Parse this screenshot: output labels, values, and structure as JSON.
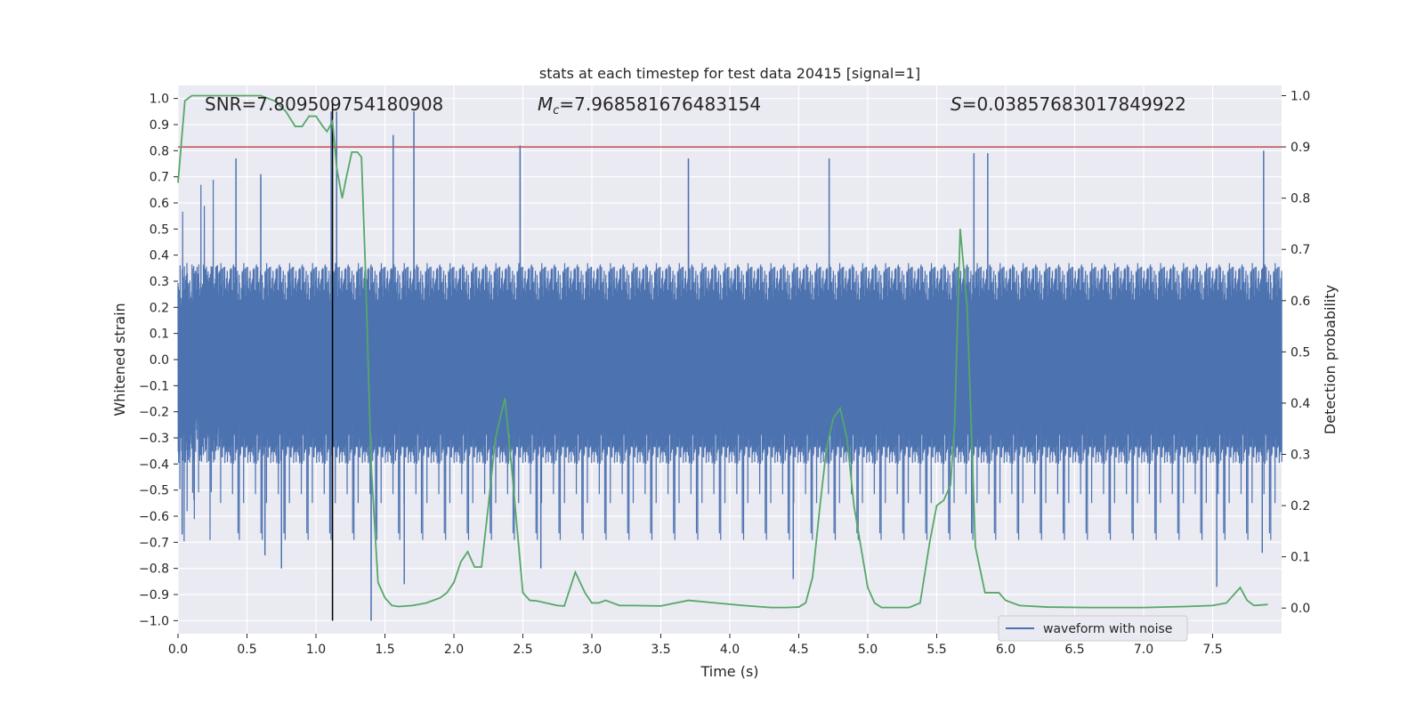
{
  "chart_data": {
    "type": "line",
    "title": "stats at each timestep for test data 20415 [signal=1]",
    "xlabel": "Time (s)",
    "ylabel_left": "Whitened strain",
    "ylabel_right": "Detection probability",
    "xlim": [
      0.0,
      8.0
    ],
    "ylim_left": [
      -1.05,
      1.05
    ],
    "ylim_right": [
      -0.05,
      1.02
    ],
    "x_ticks": [
      0.0,
      0.5,
      1.0,
      1.5,
      2.0,
      2.5,
      3.0,
      3.5,
      4.0,
      4.5,
      5.0,
      5.5,
      6.0,
      6.5,
      7.0,
      7.5
    ],
    "x_tick_labels": [
      "0.0",
      "0.5",
      "1.0",
      "1.5",
      "2.0",
      "2.5",
      "3.0",
      "3.5",
      "4.0",
      "4.5",
      "5.0",
      "5.5",
      "6.0",
      "6.5",
      "7.0",
      "7.5"
    ],
    "y_left_ticks": [
      1.0,
      0.9,
      0.8,
      0.7,
      0.6,
      0.5,
      0.4,
      0.3,
      0.2,
      0.1,
      0.0,
      -0.1,
      -0.2,
      -0.3,
      -0.4,
      -0.5,
      -0.6,
      -0.7,
      -0.8,
      -0.9,
      -1.0
    ],
    "y_left_tick_labels": [
      "1.0",
      "0.9",
      "0.8",
      "0.7",
      "0.6",
      "0.5",
      "0.4",
      "0.3",
      "0.2",
      "0.1",
      "0.0",
      "−0.1",
      "−0.2",
      "−0.3",
      "−0.4",
      "−0.5",
      "−0.6",
      "−0.7",
      "−0.8",
      "−0.9",
      "−1.0"
    ],
    "y_right_ticks": [
      1.0,
      0.9,
      0.8,
      0.7,
      0.6,
      0.5,
      0.4,
      0.3,
      0.2,
      0.1,
      0.0
    ],
    "y_right_tick_labels": [
      "1.0",
      "0.9",
      "0.8",
      "0.7",
      "0.6",
      "0.5",
      "0.4",
      "0.3",
      "0.2",
      "0.1",
      "0.0"
    ],
    "annotations": {
      "snr": "SNR=7.809509754180908",
      "mc_symbol": "M",
      "mc_sub": "c",
      "mc_value": "=7.968581676483154",
      "s_symbol": "S",
      "s_value": "=0.03857683017849922"
    },
    "legend": {
      "label": "waveform with noise",
      "placement": "lower-right"
    },
    "threshold_line": {
      "y_right": 0.9,
      "color": "#c44e52"
    },
    "event_line": {
      "x": 1.12,
      "color": "#000000"
    },
    "waveform": {
      "name": "waveform with noise",
      "color": "#4c72b0",
      "band_upper": 0.37,
      "band_lower": -0.4,
      "spike_peaks": [
        {
          "x": 0.03,
          "y": -0.67
        },
        {
          "x": 0.42,
          "y": 0.77
        },
        {
          "x": 0.6,
          "y": 0.71
        },
        {
          "x": 0.63,
          "y": -0.75
        },
        {
          "x": 0.75,
          "y": -0.8
        },
        {
          "x": 1.11,
          "y": 0.95
        },
        {
          "x": 1.15,
          "y": 0.95
        },
        {
          "x": 1.4,
          "y": -1.0
        },
        {
          "x": 1.56,
          "y": 0.86
        },
        {
          "x": 1.64,
          "y": -0.86
        },
        {
          "x": 1.71,
          "y": 0.95
        },
        {
          "x": 2.48,
          "y": 0.82
        },
        {
          "x": 2.63,
          "y": -0.8
        },
        {
          "x": 3.7,
          "y": 0.77
        },
        {
          "x": 4.46,
          "y": -0.84
        },
        {
          "x": 4.72,
          "y": 0.77
        },
        {
          "x": 5.77,
          "y": 0.79
        },
        {
          "x": 5.87,
          "y": 0.79
        },
        {
          "x": 7.53,
          "y": -0.87
        },
        {
          "x": 7.87,
          "y": 0.8
        },
        {
          "x": 7.86,
          "y": -0.74
        }
      ]
    },
    "detection_probability": {
      "name": "detection probability",
      "color": "#55a868",
      "x": [
        0.0,
        0.05,
        0.1,
        0.2,
        0.3,
        0.4,
        0.5,
        0.6,
        0.7,
        0.78,
        0.85,
        0.9,
        0.95,
        1.0,
        1.05,
        1.08,
        1.12,
        1.15,
        1.19,
        1.22,
        1.26,
        1.3,
        1.33,
        1.36,
        1.4,
        1.45,
        1.5,
        1.55,
        1.6,
        1.7,
        1.8,
        1.9,
        1.95,
        2.0,
        2.05,
        2.1,
        2.15,
        2.2,
        2.25,
        2.3,
        2.37,
        2.42,
        2.5,
        2.55,
        2.6,
        2.7,
        2.75,
        2.8,
        2.88,
        2.95,
        3.0,
        3.05,
        3.1,
        3.2,
        3.3,
        3.5,
        3.7,
        3.9,
        4.1,
        4.3,
        4.4,
        4.5,
        4.55,
        4.6,
        4.65,
        4.7,
        4.75,
        4.8,
        4.85,
        4.9,
        5.0,
        5.05,
        5.1,
        5.3,
        5.38,
        5.45,
        5.5,
        5.55,
        5.6,
        5.63,
        5.67,
        5.72,
        5.78,
        5.85,
        5.95,
        6.0,
        6.1,
        6.3,
        6.6,
        7.0,
        7.3,
        7.5,
        7.6,
        7.65,
        7.7,
        7.75,
        7.8,
        7.9
      ],
      "y": [
        0.83,
        0.99,
        1.0,
        1.0,
        1.0,
        1.0,
        1.0,
        1.0,
        0.99,
        0.97,
        0.94,
        0.94,
        0.96,
        0.96,
        0.94,
        0.93,
        0.95,
        0.86,
        0.8,
        0.84,
        0.89,
        0.89,
        0.88,
        0.65,
        0.28,
        0.05,
        0.02,
        0.005,
        0.003,
        0.005,
        0.01,
        0.02,
        0.03,
        0.05,
        0.09,
        0.11,
        0.08,
        0.08,
        0.2,
        0.33,
        0.41,
        0.27,
        0.03,
        0.015,
        0.014,
        0.008,
        0.005,
        0.004,
        0.07,
        0.03,
        0.01,
        0.01,
        0.015,
        0.005,
        0.005,
        0.004,
        0.015,
        0.01,
        0.005,
        0.001,
        0.001,
        0.002,
        0.01,
        0.06,
        0.19,
        0.31,
        0.37,
        0.39,
        0.33,
        0.2,
        0.04,
        0.01,
        0.001,
        0.001,
        0.01,
        0.13,
        0.2,
        0.21,
        0.24,
        0.36,
        0.74,
        0.59,
        0.12,
        0.03,
        0.03,
        0.015,
        0.005,
        0.002,
        0.001,
        0.001,
        0.003,
        0.005,
        0.01,
        0.025,
        0.04,
        0.015,
        0.005,
        0.007
      ]
    }
  }
}
